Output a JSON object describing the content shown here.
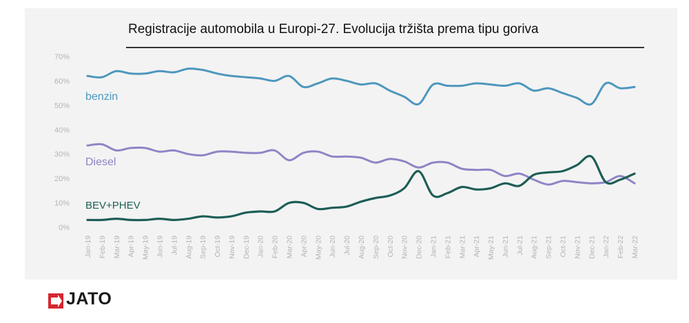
{
  "chart_data": {
    "type": "line",
    "title": "Registracije automobila u Europi-27. Evolucija tržišta prema tipu goriva",
    "xlabel": "",
    "ylabel": "",
    "ylim": [
      0,
      70
    ],
    "y_ticks": [
      "0%",
      "10%",
      "20%",
      "30%",
      "40%",
      "50%",
      "60%",
      "70%"
    ],
    "y_tick_values": [
      0,
      10,
      20,
      30,
      40,
      50,
      60,
      70
    ],
    "grid": false,
    "legend": "inline labels",
    "x": [
      "Jan-19",
      "Feb-19",
      "Mar-19",
      "Apr-19",
      "May-19",
      "Jun-19",
      "Jul-19",
      "Aug-19",
      "Sep-19",
      "Oct-19",
      "Nov-19",
      "Dec-19",
      "Jan-20",
      "Feb-20",
      "Mar-20",
      "Apr-20",
      "May-20",
      "Jun-20",
      "Jul-20",
      "Aug-20",
      "Sep-20",
      "Oct-20",
      "Nov-20",
      "Dec-20",
      "Jan-21",
      "Feb-21",
      "Mar-21",
      "Apr-21",
      "May-21",
      "Jun-21",
      "Jul-21",
      "Aug-21",
      "Sep-21",
      "Oct-21",
      "Nov-21",
      "Dec-21",
      "Jan-22",
      "Feb-22",
      "Mar-22"
    ],
    "series": [
      {
        "name": "benzin",
        "color": "#4d97bd",
        "values": [
          62,
          61.5,
          64,
          63,
          63,
          64,
          63.5,
          65,
          64.5,
          63,
          62,
          61.5,
          61,
          60,
          62,
          57.5,
          59,
          61,
          60,
          58.5,
          59,
          56,
          53.5,
          50.5,
          58.5,
          58,
          58,
          59,
          58.5,
          58,
          59,
          56,
          57,
          55,
          53,
          50.5,
          59,
          57,
          57.5
        ]
      },
      {
        "name": "Diesel",
        "color": "#8f84c6",
        "values": [
          33.5,
          34,
          31.5,
          32.5,
          32.5,
          31,
          31.5,
          30,
          29.5,
          31,
          31,
          30.5,
          30.5,
          31.5,
          27.5,
          30.5,
          31,
          29,
          29,
          28.5,
          26.5,
          28,
          27,
          24.5,
          26.5,
          26.5,
          24,
          23.5,
          23.5,
          21,
          22,
          19.5,
          17.5,
          19,
          18.5,
          18,
          18.5,
          21,
          18
        ]
      },
      {
        "name": "BEV+PHEV",
        "color": "#1d5e56",
        "values": [
          3,
          3,
          3.5,
          3,
          3,
          3.5,
          3,
          3.5,
          4.5,
          4,
          4.5,
          6,
          6.5,
          6.5,
          10,
          10,
          7.5,
          8,
          8.5,
          10.5,
          12,
          13,
          16,
          23,
          13,
          14,
          16.5,
          15.5,
          16,
          18,
          17,
          21.5,
          22.5,
          23,
          25.5,
          29,
          18.5,
          19.5,
          22
        ]
      }
    ]
  },
  "brand": {
    "name": "JATO",
    "mark_color": "#d7262f"
  }
}
